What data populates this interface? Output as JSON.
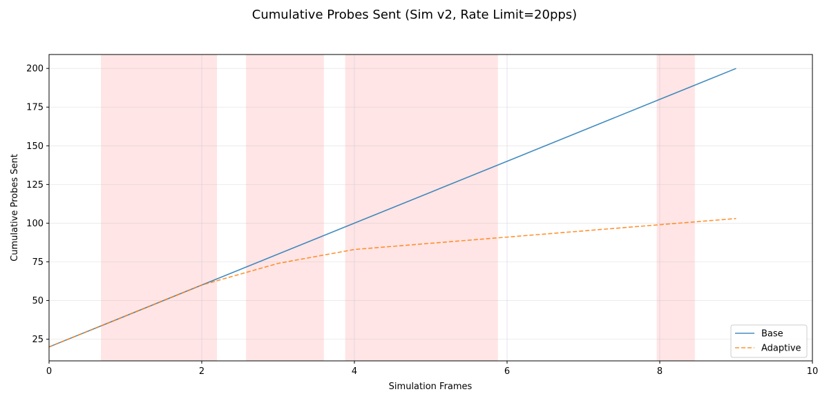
{
  "chart_data": {
    "type": "line",
    "title": "Cumulative Probes Sent (Sim v2, Rate Limit=20pps)",
    "xlabel": "Simulation Frames",
    "ylabel": "Cumulative Probes Sent",
    "xlim": [
      0,
      10
    ],
    "ylim": [
      11,
      209
    ],
    "xticks": [
      0,
      2,
      4,
      6,
      8,
      10
    ],
    "yticks": [
      25,
      50,
      75,
      100,
      125,
      150,
      175,
      200
    ],
    "grid": true,
    "legend_position": "bottom-right",
    "series": [
      {
        "name": "Base",
        "color": "#1f77b4",
        "style": "solid",
        "x": [
          0,
          1,
          2,
          3,
          4,
          5,
          6,
          7,
          8,
          9
        ],
        "y": [
          20,
          40,
          60,
          80,
          100,
          120,
          140,
          160,
          180,
          200
        ]
      },
      {
        "name": "Adaptive",
        "color": "#ff7f0e",
        "style": "dashed",
        "x": [
          0,
          1,
          2,
          3,
          4,
          5,
          6,
          7,
          8,
          9
        ],
        "y": [
          20,
          40,
          60,
          74,
          83,
          87,
          91,
          95,
          99,
          103
        ]
      }
    ],
    "shaded_regions": [
      {
        "x_start": 0.68,
        "x_end": 2.2
      },
      {
        "x_start": 2.58,
        "x_end": 3.6
      },
      {
        "x_start": 3.88,
        "x_end": 5.88
      },
      {
        "x_start": 7.96,
        "x_end": 8.46
      }
    ],
    "vertical_lines": [
      2,
      4,
      6,
      8
    ],
    "shade_color": "#ffcccc"
  }
}
